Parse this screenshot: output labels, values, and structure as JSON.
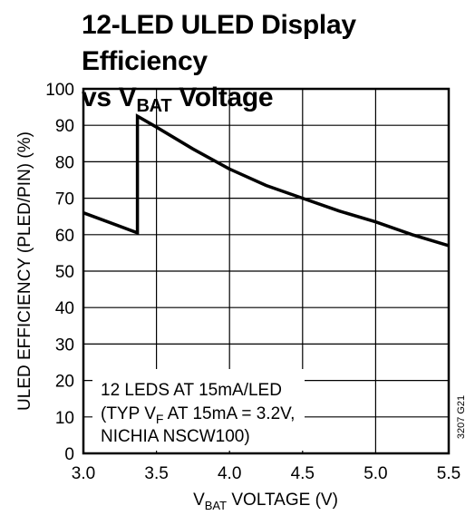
{
  "title": {
    "line1": "12-LED ULED Display Efficiency",
    "line2_prefix": "vs V",
    "line2_sub": "BAT",
    "line2_suffix": " Voltage"
  },
  "annotation": {
    "line1": "12 LEDS AT 15mA/LED",
    "line2_prefix": "(TYP V",
    "line2_sub": "F",
    "line2_suffix": " AT 15mA = 3.2V,",
    "line3": "NICHIA NSCW100)"
  },
  "figure_code": "3207 G21",
  "chart_data": {
    "type": "line",
    "xlabel_prefix": "V",
    "xlabel_sub": "BAT",
    "xlabel_suffix": " VOLTAGE (V)",
    "ylabel": "ULED EFFICIENCY (PLED/PIN) (%)",
    "xlim": [
      3.0,
      5.5
    ],
    "ylim": [
      0,
      100
    ],
    "xticks": [
      "3.0",
      "3.5",
      "4.0",
      "4.5",
      "5.0",
      "5.5"
    ],
    "yticks": [
      "0",
      "10",
      "20",
      "30",
      "40",
      "50",
      "60",
      "70",
      "80",
      "90",
      "100"
    ],
    "grid": true,
    "series": [
      {
        "x": [
          3.0,
          3.37,
          3.37,
          3.5,
          3.75,
          4.0,
          4.25,
          4.5,
          4.75,
          5.0,
          5.25,
          5.5
        ],
        "y": [
          66,
          60.5,
          92.5,
          89.5,
          83.5,
          78,
          73.5,
          70,
          66.5,
          63.5,
          60,
          57
        ]
      }
    ]
  }
}
